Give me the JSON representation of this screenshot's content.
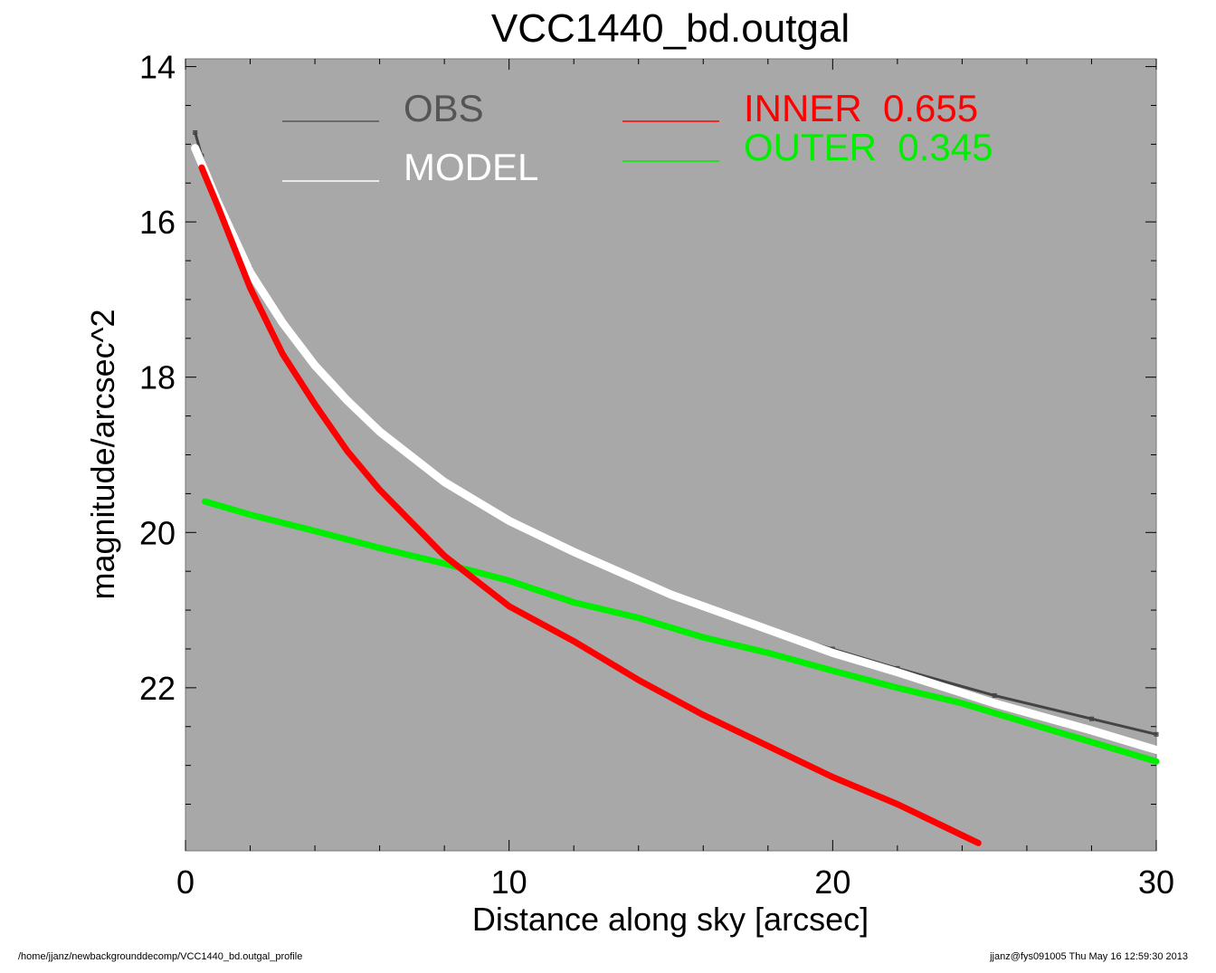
{
  "chart_data": {
    "type": "scatter",
    "title": "VCC1440_bd.outgal",
    "xlabel": "Distance along sky [arcsec]",
    "ylabel": "magnitude/arcsec^2",
    "xlim": [
      0,
      30
    ],
    "ylim": [
      24.1,
      13.9
    ],
    "y_inverted": true,
    "xticks": [
      "0",
      "10",
      "20",
      "30"
    ],
    "yticks": [
      "14",
      "16",
      "18",
      "20",
      "22"
    ],
    "background": "#a8a8a8",
    "legend": [
      {
        "label": "OBS",
        "value": "",
        "color": "#555555"
      },
      {
        "label": "MODEL",
        "value": "",
        "color": "#ffffff"
      },
      {
        "label": "INNER",
        "value": "0.655",
        "color": "#ff0000"
      },
      {
        "label": "OUTER",
        "value": "0.345",
        "color": "#00ee00"
      }
    ],
    "series": [
      {
        "name": "OBS",
        "color": "#444444",
        "x": [
          0.3,
          0.5,
          1.0,
          2.0,
          3.0,
          4.0,
          5.0,
          6.0,
          8.0,
          10.0,
          12.0,
          15.0,
          18.0,
          20.0,
          22.0,
          25.0,
          28.0,
          30.0
        ],
        "y": [
          14.85,
          15.15,
          15.7,
          16.6,
          17.3,
          17.85,
          18.3,
          18.7,
          19.35,
          19.85,
          20.25,
          20.8,
          21.25,
          21.5,
          21.75,
          22.1,
          22.4,
          22.6
        ]
      },
      {
        "name": "MODEL",
        "color": "#ffffff",
        "x": [
          0.3,
          0.5,
          1.0,
          2.0,
          3.0,
          4.0,
          5.0,
          6.0,
          8.0,
          10.0,
          12.0,
          15.0,
          18.0,
          20.0,
          22.0,
          25.0,
          28.0,
          30.0
        ],
        "y": [
          15.05,
          15.25,
          15.75,
          16.65,
          17.3,
          17.85,
          18.3,
          18.7,
          19.35,
          19.85,
          20.25,
          20.8,
          21.25,
          21.55,
          21.8,
          22.2,
          22.55,
          22.8
        ]
      },
      {
        "name": "INNER",
        "color": "#ff0000",
        "x": [
          0.5,
          1.0,
          2.0,
          3.0,
          4.0,
          5.0,
          6.0,
          8.0,
          10.0,
          12.0,
          14.0,
          16.0,
          18.0,
          20.0,
          22.0,
          24.0,
          24.5
        ],
        "y": [
          15.3,
          15.8,
          16.85,
          17.7,
          18.35,
          18.95,
          19.45,
          20.3,
          20.95,
          21.4,
          21.9,
          22.35,
          22.75,
          23.15,
          23.5,
          23.9,
          24.0
        ]
      },
      {
        "name": "OUTER",
        "color": "#00ee00",
        "x": [
          0.6,
          2.0,
          4.0,
          6.0,
          8.0,
          10.0,
          12.0,
          14.0,
          16.0,
          18.0,
          20.0,
          22.0,
          24.0,
          26.0,
          28.0,
          30.0
        ],
        "y": [
          19.6,
          19.77,
          19.98,
          20.2,
          20.4,
          20.62,
          20.9,
          21.1,
          21.35,
          21.55,
          21.78,
          22.0,
          22.2,
          22.45,
          22.7,
          22.95
        ]
      }
    ]
  },
  "footer": {
    "left": "/home/jjanz/newbackgrounddecomp/VCC1440_bd.outgal_profile",
    "right": "jjanz@fys091005  Thu May 16 12:59:30 2013"
  }
}
